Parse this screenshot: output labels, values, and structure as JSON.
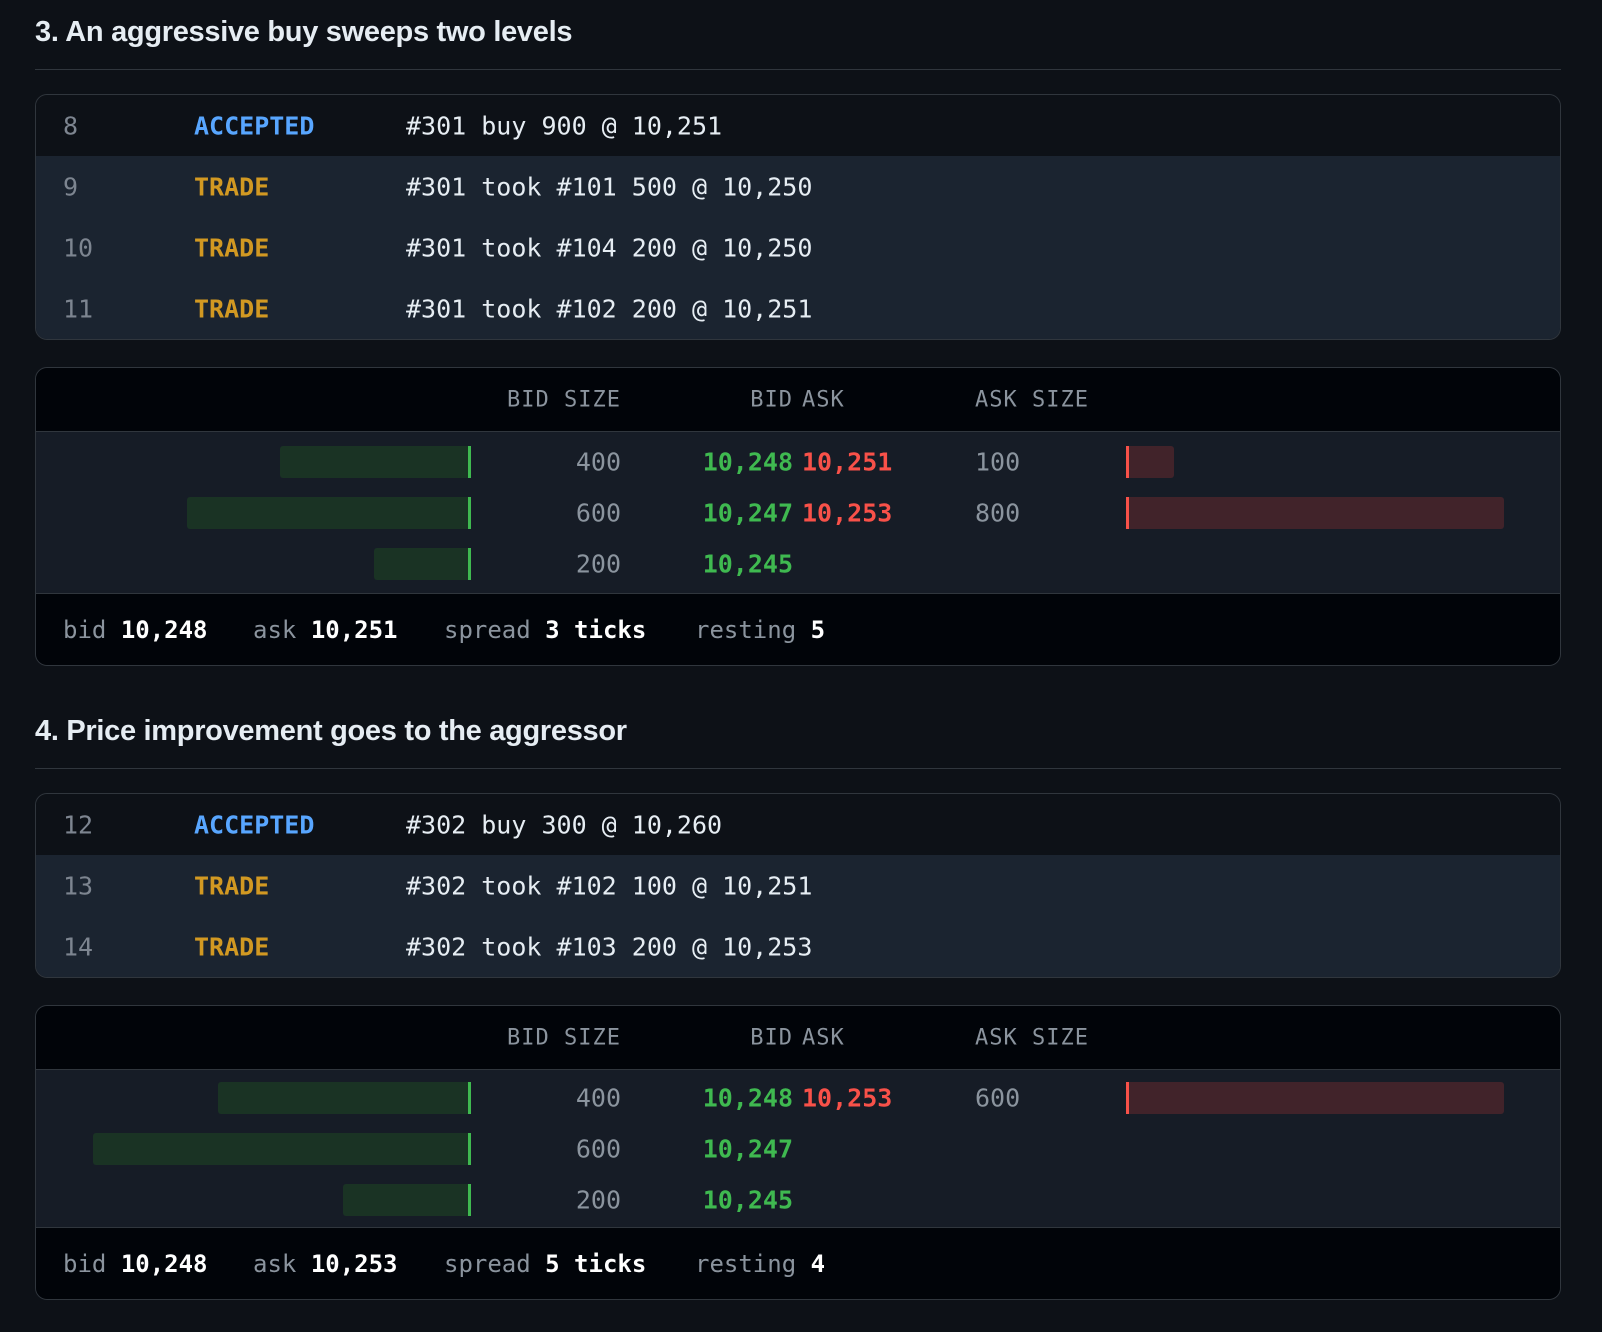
{
  "sections": [
    {
      "title": "3. An aggressive buy sweeps two levels",
      "log": [
        {
          "seq": "8",
          "kind": "ACCEPTED",
          "msg": "#301 buy 900 @ 10,251"
        },
        {
          "seq": "9",
          "kind": "TRADE",
          "msg": "#301 took #101 500 @ 10,250"
        },
        {
          "seq": "10",
          "kind": "TRADE",
          "msg": "#301 took #104 200 @ 10,250"
        },
        {
          "seq": "11",
          "kind": "TRADE",
          "msg": "#301 took #102 200 @ 10,251"
        }
      ],
      "book": {
        "headers": {
          "bid_size": "BID SIZE",
          "bid": "BID",
          "ask": "ASK",
          "ask_size": "ASK SIZE"
        },
        "levels": [
          {
            "bid_size": "400",
            "bid": "10,248",
            "ask": "10,251",
            "ask_size": "100",
            "bid_fill": 0.5,
            "ask_fill": 0.12
          },
          {
            "bid_size": "600",
            "bid": "10,247",
            "ask": "10,253",
            "ask_size": "800",
            "bid_fill": 0.75,
            "ask_fill": 1.0
          },
          {
            "bid_size": "200",
            "bid": "10,245",
            "ask": "",
            "ask_size": "",
            "bid_fill": 0.25,
            "ask_fill": 0
          }
        ],
        "footer": {
          "bid_label": "bid",
          "bid_value": "10,248",
          "ask_label": "ask",
          "ask_value": "10,251",
          "spread_label": "spread",
          "spread_value": "3 ticks",
          "resting_label": "resting",
          "resting_value": "5"
        }
      }
    },
    {
      "title": "4. Price improvement goes to the aggressor",
      "log": [
        {
          "seq": "12",
          "kind": "ACCEPTED",
          "msg": "#302 buy 300 @ 10,260"
        },
        {
          "seq": "13",
          "kind": "TRADE",
          "msg": "#302 took #102 100 @ 10,251"
        },
        {
          "seq": "14",
          "kind": "TRADE",
          "msg": "#302 took #103 200 @ 10,253"
        }
      ],
      "book": {
        "headers": {
          "bid_size": "BID SIZE",
          "bid": "BID",
          "ask": "ASK",
          "ask_size": "ASK SIZE"
        },
        "levels": [
          {
            "bid_size": "400",
            "bid": "10,248",
            "ask": "10,253",
            "ask_size": "600",
            "bid_fill": 0.667,
            "ask_fill": 1.0
          },
          {
            "bid_size": "600",
            "bid": "10,247",
            "ask": "",
            "ask_size": "",
            "bid_fill": 1.0,
            "ask_fill": 0
          },
          {
            "bid_size": "200",
            "bid": "10,245",
            "ask": "",
            "ask_size": "",
            "bid_fill": 0.333,
            "ask_fill": 0
          }
        ],
        "footer": {
          "bid_label": "bid",
          "bid_value": "10,248",
          "ask_label": "ask",
          "ask_value": "10,253",
          "spread_label": "spread",
          "spread_value": "5 ticks",
          "resting_label": "resting",
          "resting_value": "4"
        }
      }
    }
  ],
  "colors": {
    "bid": "#3fb950",
    "ask": "#f85149",
    "accepted": "#58a6ff",
    "trade": "#d29922"
  }
}
